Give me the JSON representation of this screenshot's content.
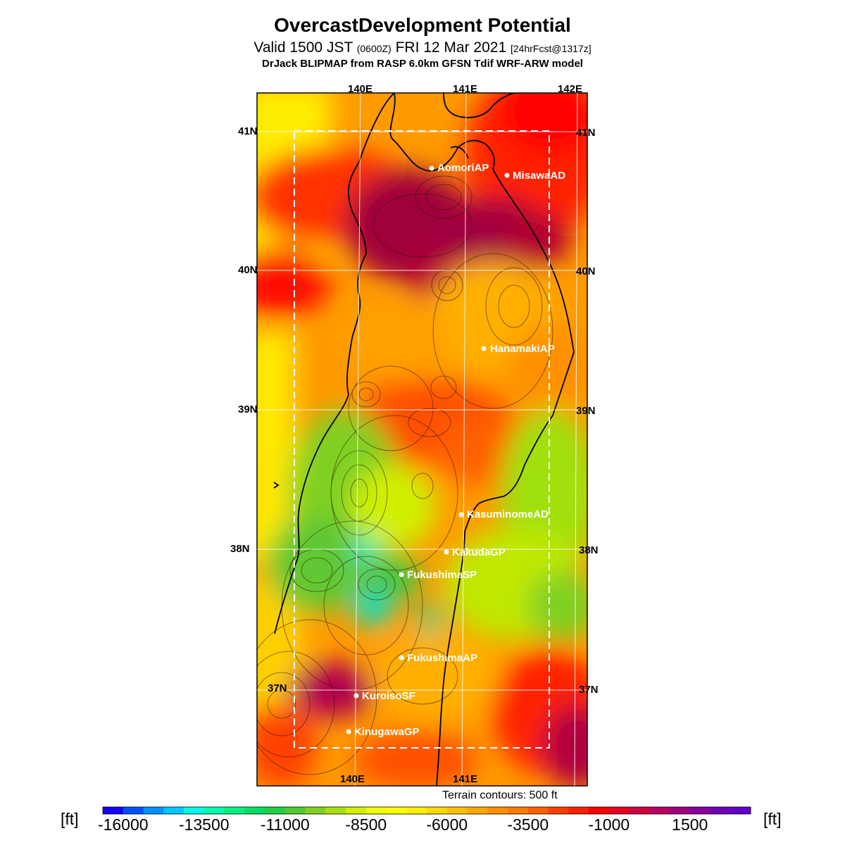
{
  "header": {
    "title": "OvercastDevelopment Potential",
    "valid_prefix": "Valid 1500 JST",
    "valid_utc": "(0600Z)",
    "valid_date": "FRI 12 Mar 2021",
    "forecast_tag": "[24hrFcst@1317z]",
    "model_line": "DrJack BLIPMAP from RASP 6.0km GFSN Tdif WRF-ARW model"
  },
  "map": {
    "lon_labels_top": [
      "140E",
      "141E",
      "142E"
    ],
    "lon_labels_bottom": [
      "140E",
      "141E"
    ],
    "lat_labels_left": [
      "41N",
      "40N",
      "39N",
      "38N",
      "37N"
    ],
    "lat_labels_right": [
      "41N",
      "40N",
      "39N",
      "38N",
      "37N"
    ],
    "stations": [
      {
        "name": "AomoriAP"
      },
      {
        "name": "MisawaAD"
      },
      {
        "name": "HanamakiAP"
      },
      {
        "name": "KasuminomeAD"
      },
      {
        "name": "KakudaGP"
      },
      {
        "name": "FukushimaSP"
      },
      {
        "name": "FukushimaAP"
      },
      {
        "name": "KuroisoSF"
      },
      {
        "name": "KinugawaGP"
      }
    ],
    "terrain_note": "Terrain contours: 500 ft"
  },
  "colorbar": {
    "unit": "[ft]",
    "tick_labels": [
      "-16000",
      "-13500",
      "-11000",
      "-8500",
      "-6000",
      "-3500",
      "-1000",
      "1500"
    ],
    "colors": [
      "#1400ff",
      "#0050ff",
      "#0090ff",
      "#00c8ff",
      "#00ffe8",
      "#00ffb0",
      "#00f080",
      "#00e060",
      "#20d040",
      "#50c830",
      "#80d020",
      "#a8e010",
      "#d0f000",
      "#f0ff00",
      "#ffff00",
      "#fff000",
      "#ffd800",
      "#ffc000",
      "#ffa800",
      "#ff9000",
      "#ff7800",
      "#ff6000",
      "#ff4000",
      "#ff2000",
      "#ff0000",
      "#e80020",
      "#d00040",
      "#b80060",
      "#a00080",
      "#8800a0",
      "#7000b8",
      "#6000c8"
    ]
  }
}
